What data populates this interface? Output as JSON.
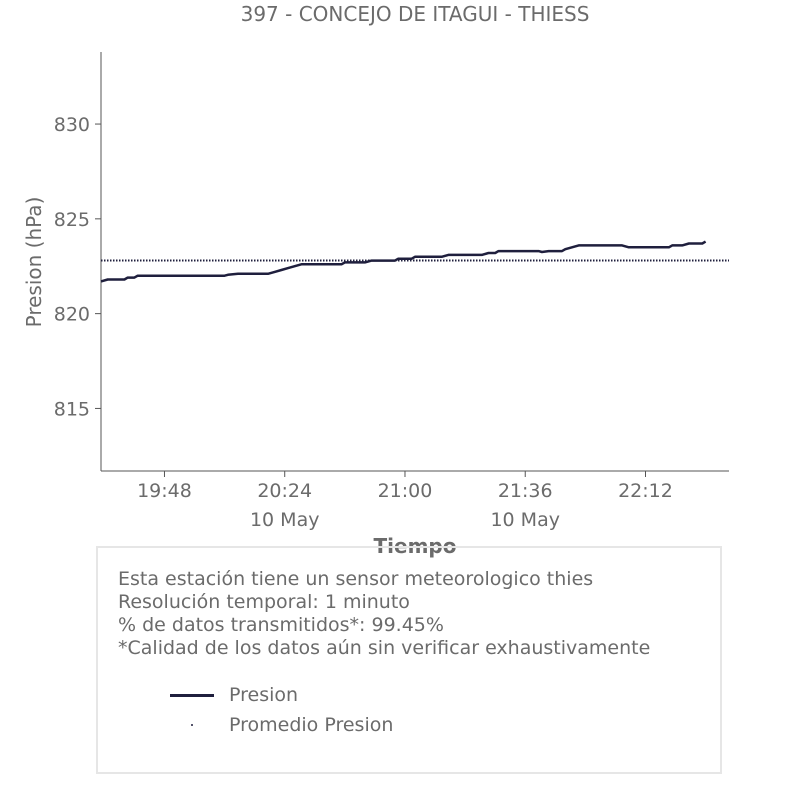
{
  "chart_data": {
    "type": "line",
    "title": "397 - CONCEJO DE ITAGUI - THIESS",
    "xlabel": "Tiempo",
    "ylabel": "Presion (hPa)",
    "ylim": [
      811.7,
      833.8
    ],
    "xlim": [
      "19:29",
      "22:37"
    ],
    "yticks": [
      815,
      820,
      825,
      830
    ],
    "xticks": [
      {
        "time": "19:48",
        "label": "19:48",
        "sublabel": ""
      },
      {
        "time": "20:24",
        "label": "20:24",
        "sublabel": "10 May"
      },
      {
        "time": "21:00",
        "label": "21:00",
        "sublabel": ""
      },
      {
        "time": "21:36",
        "label": "21:36",
        "sublabel": "10 May"
      },
      {
        "time": "22:12",
        "label": "22:12",
        "sublabel": ""
      }
    ],
    "series": [
      {
        "name": "Presion",
        "color": "#1f1f3d",
        "style": "solid",
        "points": [
          [
            "19:29",
            821.7
          ],
          [
            "19:31",
            821.8
          ],
          [
            "19:36",
            821.8
          ],
          [
            "19:37",
            821.9
          ],
          [
            "19:39",
            821.9
          ],
          [
            "19:40",
            822.0
          ],
          [
            "20:06",
            822.0
          ],
          [
            "20:07",
            822.05
          ],
          [
            "20:10",
            822.1
          ],
          [
            "20:19",
            822.1
          ],
          [
            "20:21",
            822.2
          ],
          [
            "20:23",
            822.3
          ],
          [
            "20:25",
            822.4
          ],
          [
            "20:27",
            822.5
          ],
          [
            "20:29",
            822.6
          ],
          [
            "20:41",
            822.6
          ],
          [
            "20:42",
            822.7
          ],
          [
            "20:48",
            822.7
          ],
          [
            "20:50",
            822.8
          ],
          [
            "20:57",
            822.8
          ],
          [
            "20:58",
            822.9
          ],
          [
            "21:02",
            822.9
          ],
          [
            "21:03",
            823.0
          ],
          [
            "21:11",
            823.0
          ],
          [
            "21:13",
            823.1
          ],
          [
            "21:23",
            823.1
          ],
          [
            "21:25",
            823.2
          ],
          [
            "21:27",
            823.2
          ],
          [
            "21:28",
            823.3
          ],
          [
            "21:40",
            823.3
          ],
          [
            "21:41",
            823.25
          ],
          [
            "21:43",
            823.3
          ],
          [
            "21:47",
            823.3
          ],
          [
            "21:48",
            823.4
          ],
          [
            "21:50",
            823.5
          ],
          [
            "21:52",
            823.6
          ],
          [
            "22:05",
            823.6
          ],
          [
            "22:07",
            823.5
          ],
          [
            "22:19",
            823.5
          ],
          [
            "22:20",
            823.6
          ],
          [
            "22:23",
            823.6
          ],
          [
            "22:25",
            823.7
          ],
          [
            "22:29",
            823.7
          ],
          [
            "22:30",
            823.8
          ]
        ]
      },
      {
        "name": "Promedio Presion",
        "color": "#1f1f3d",
        "style": "dotted",
        "value": 822.8
      }
    ],
    "legend_placement": "bottom"
  },
  "info": {
    "lines": [
      "Esta estación tiene un sensor meteorologico thies",
      "Resolución temporal: 1 minuto",
      "% de datos transmitidos*: 99.45%",
      "*Calidad de los datos aún sin verificar exhaustivamente"
    ]
  },
  "legend": {
    "items": [
      {
        "label": "Presion",
        "marker": "line"
      },
      {
        "label": "Promedio Presion",
        "marker": "dot"
      }
    ]
  }
}
